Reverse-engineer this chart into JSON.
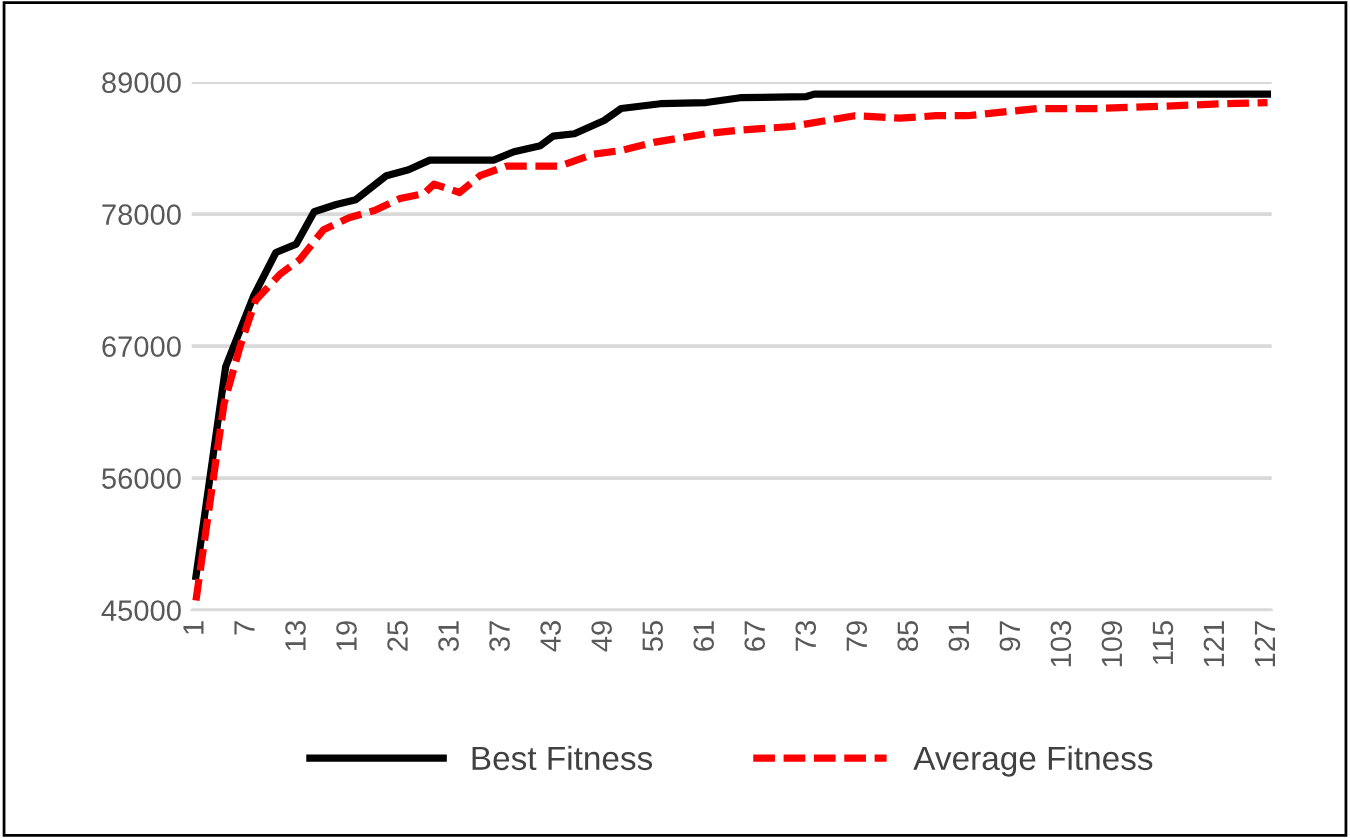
{
  "chart_data": {
    "type": "line",
    "xlim": [
      0.5,
      127.5
    ],
    "xticks": [
      1,
      7,
      13,
      19,
      25,
      31,
      37,
      43,
      49,
      55,
      61,
      67,
      73,
      79,
      85,
      91,
      97,
      103,
      109,
      115,
      121,
      127
    ],
    "ylim": [
      45000,
      89000
    ],
    "yticks": [
      45000,
      56000,
      67000,
      78000,
      89000
    ],
    "grid": "y",
    "legend": "bottom",
    "series": [
      {
        "name": "Best Fitness",
        "color": "#000000",
        "line_style": "solid",
        "x": [
          1,
          4.5,
          7.8,
          10.4,
          12.8,
          14.9,
          17.5,
          19.8,
          23.4,
          26,
          28.5,
          36,
          38.4,
          41.5,
          43,
          45.5,
          49,
          51,
          55.6,
          61,
          65,
          72.8,
          73.7,
          127
        ],
        "values": [
          47800,
          65300,
          71200,
          74800,
          75500,
          78200,
          78800,
          79200,
          81200,
          81700,
          82500,
          82500,
          83200,
          83700,
          84500,
          84700,
          85800,
          86800,
          87200,
          87300,
          87700,
          87800,
          88000,
          88000
        ]
      },
      {
        "name": "Average Fitness",
        "color": "#ff0000",
        "line_style": "dashed",
        "x": [
          1,
          4.3,
          6.2,
          8,
          10.9,
          13.2,
          16,
          19,
          22,
          25,
          27.8,
          29,
          32,
          34.4,
          37.5,
          43.8,
          47.8,
          51,
          55,
          61,
          65,
          71,
          78.5,
          83.8,
          88,
          91.7,
          100,
          107,
          115,
          122,
          127
        ],
        "values": [
          45800,
          62200,
          67000,
          70800,
          73000,
          74200,
          76700,
          77700,
          78300,
          79300,
          79700,
          80500,
          79800,
          81200,
          82000,
          82000,
          83000,
          83300,
          84000,
          84700,
          85000,
          85300,
          86200,
          86000,
          86200,
          86200,
          86800,
          86800,
          87000,
          87200,
          87300
        ]
      }
    ]
  }
}
